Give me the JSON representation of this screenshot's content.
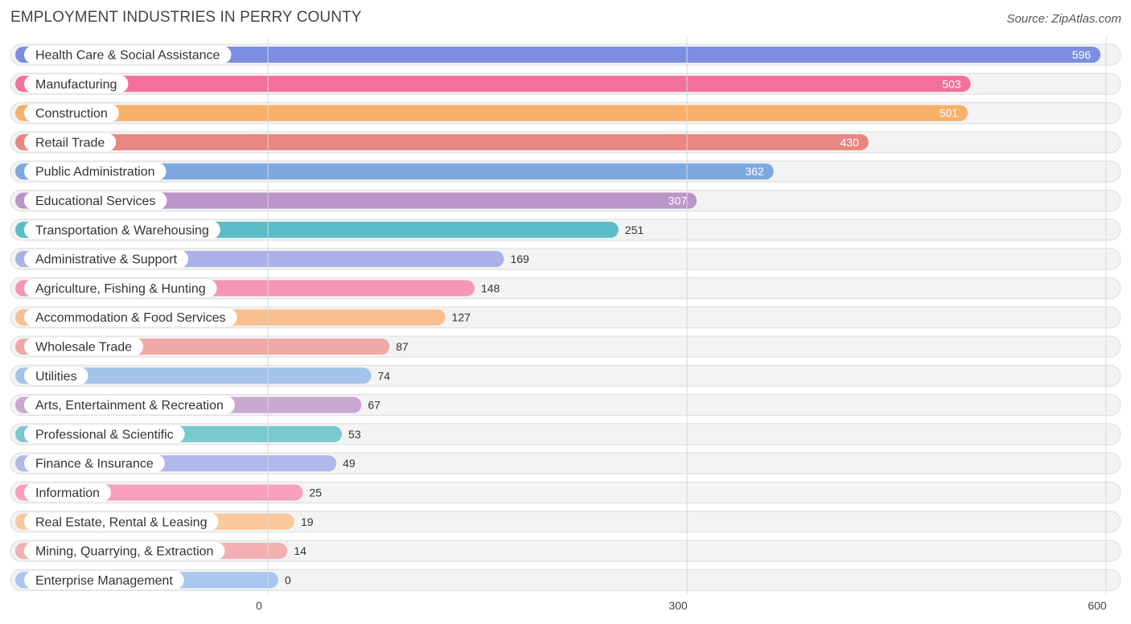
{
  "title": "EMPLOYMENT INDUSTRIES IN PERRY COUNTY",
  "source": "Source: ZipAtlas.com",
  "chart_data": {
    "type": "bar",
    "orientation": "horizontal",
    "title": "EMPLOYMENT INDUSTRIES IN PERRY COUNTY",
    "xlabel": "",
    "ylabel": "",
    "xlim": [
      0,
      600
    ],
    "ticks": [
      0,
      300,
      600
    ],
    "tick_labels": [
      "0",
      "300",
      "600"
    ],
    "categories": [
      "Health Care & Social Assistance",
      "Manufacturing",
      "Construction",
      "Retail Trade",
      "Public Administration",
      "Educational Services",
      "Transportation & Warehousing",
      "Administrative & Support",
      "Agriculture, Fishing & Hunting",
      "Accommodation & Food Services",
      "Wholesale Trade",
      "Utilities",
      "Arts, Entertainment & Recreation",
      "Professional & Scientific",
      "Finance & Insurance",
      "Information",
      "Real Estate, Rental & Leasing",
      "Mining, Quarrying, & Extraction",
      "Enterprise Management"
    ],
    "values": [
      596,
      503,
      501,
      430,
      362,
      307,
      251,
      169,
      148,
      127,
      87,
      74,
      67,
      53,
      49,
      25,
      19,
      14,
      0
    ],
    "value_labels": [
      "596",
      "503",
      "501",
      "430",
      "362",
      "307",
      "251",
      "169",
      "148",
      "127",
      "87",
      "74",
      "67",
      "53",
      "49",
      "25",
      "19",
      "14",
      "0"
    ],
    "colors": [
      "#7b8ee0",
      "#f2709a",
      "#f8b06a",
      "#e8877f",
      "#7ea8e0",
      "#bb95c8",
      "#5bbcc8",
      "#a9b1e8",
      "#f596b5",
      "#f8c090",
      "#f0a8a8",
      "#a3c3ea",
      "#c9a8d2",
      "#78c8d0",
      "#b0b8ec",
      "#f8a0bc",
      "#f9c89c",
      "#f2b0b2",
      "#a9c6ee"
    ],
    "grid": true,
    "legend": "none"
  }
}
